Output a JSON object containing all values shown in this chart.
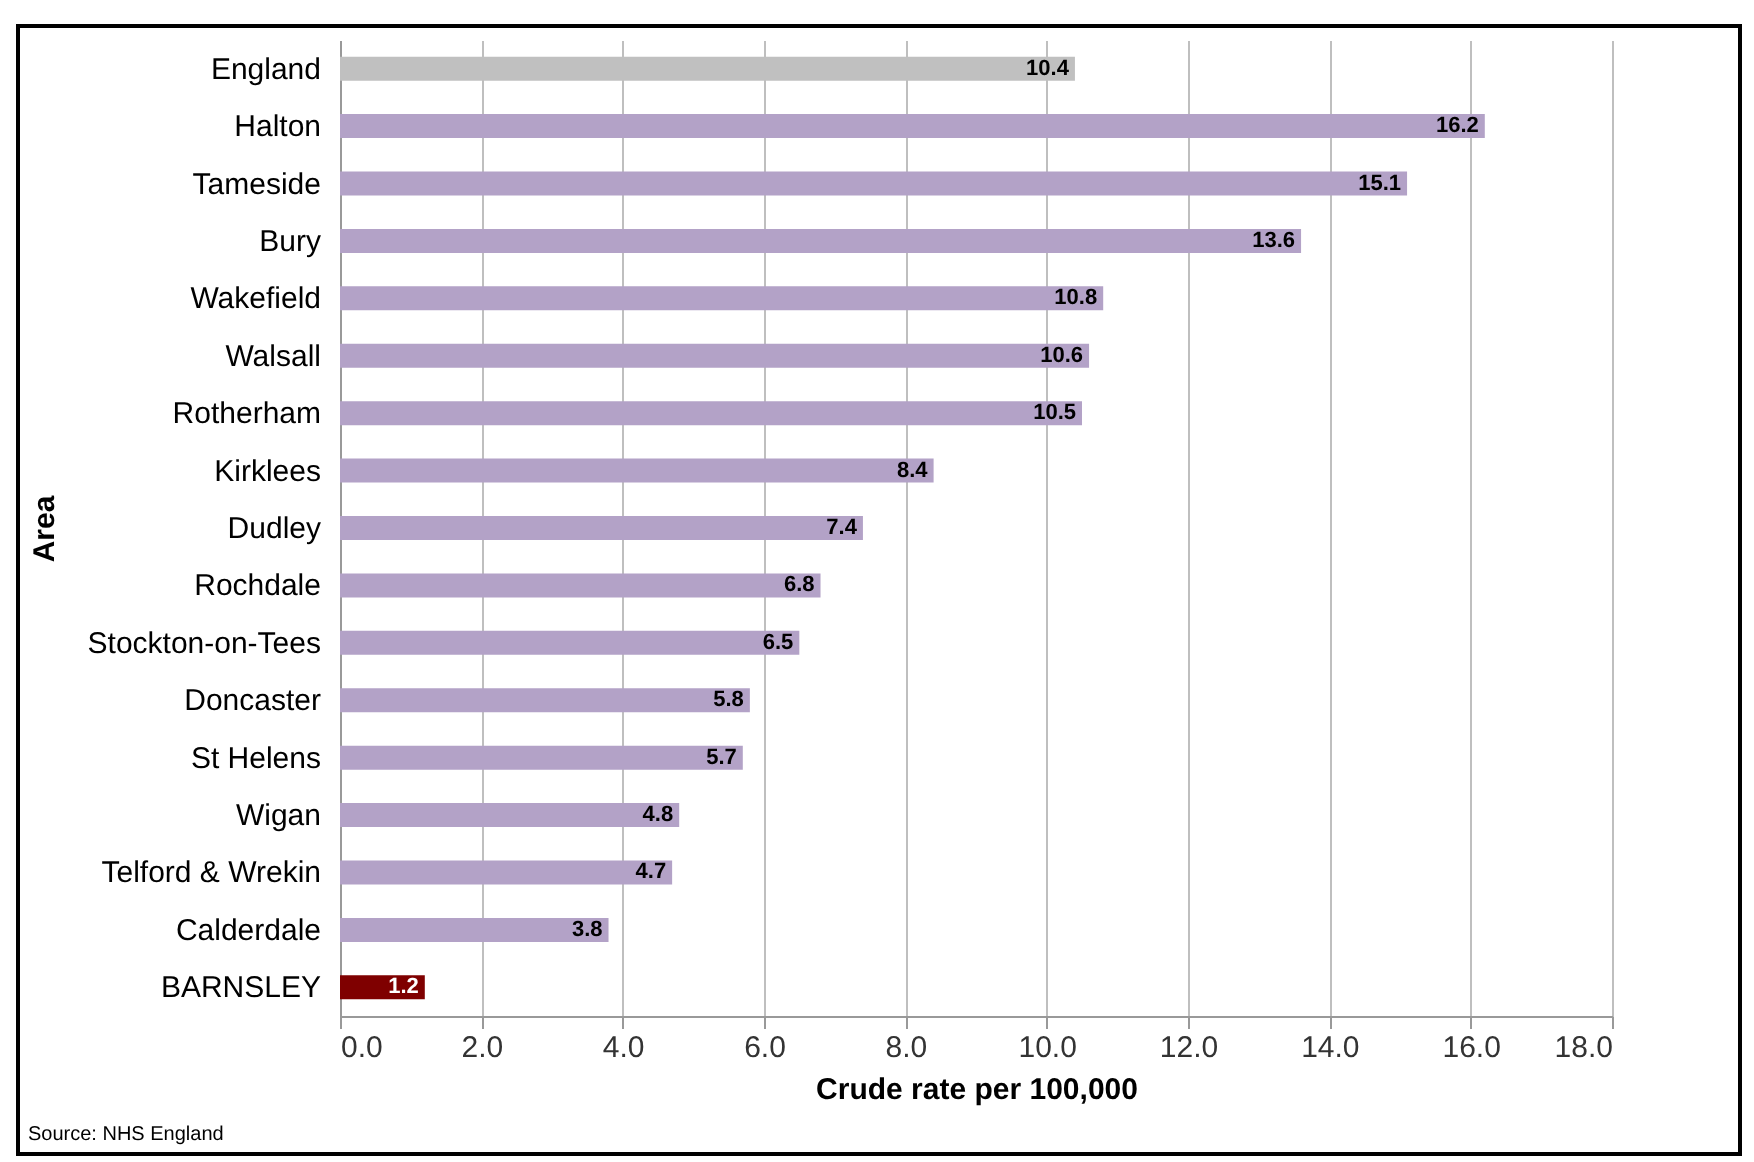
{
  "chart_data": {
    "type": "bar",
    "orientation": "horizontal",
    "xlabel": "Crude rate per 100,000",
    "ylabel": "Area",
    "categories": [
      "England",
      "Halton",
      "Tameside",
      "Bury",
      "Wakefield",
      "Walsall",
      "Rotherham",
      "Kirklees",
      "Dudley",
      "Rochdale",
      "Stockton-on-Tees",
      "Doncaster",
      "St Helens",
      "Wigan",
      "Telford & Wrekin",
      "Calderdale",
      "BARNSLEY"
    ],
    "values": [
      10.4,
      16.2,
      15.1,
      13.6,
      10.8,
      10.6,
      10.5,
      8.4,
      7.4,
      6.8,
      6.5,
      5.8,
      5.7,
      4.8,
      4.7,
      3.8,
      1.2
    ],
    "colors": [
      "#c0c0c0",
      "#b3a2c7",
      "#b3a2c7",
      "#b3a2c7",
      "#b3a2c7",
      "#b3a2c7",
      "#b3a2c7",
      "#b3a2c7",
      "#b3a2c7",
      "#b3a2c7",
      "#b3a2c7",
      "#b3a2c7",
      "#b3a2c7",
      "#b3a2c7",
      "#b3a2c7",
      "#b3a2c7",
      "#7f0000"
    ],
    "xlim": [
      0,
      18
    ],
    "xticks": [
      {
        "value": 0,
        "label": "0.0"
      },
      {
        "value": 2,
        "label": "2.0"
      },
      {
        "value": 4,
        "label": "4.0"
      },
      {
        "value": 6,
        "label": "6.0"
      },
      {
        "value": 8,
        "label": "8.0"
      },
      {
        "value": 10,
        "label": "10.0"
      },
      {
        "value": 12,
        "label": "12.0"
      },
      {
        "value": 14,
        "label": "14.0"
      },
      {
        "value": 16,
        "label": "16.0"
      },
      {
        "value": 18,
        "label": "18.0"
      }
    ],
    "grid": "x",
    "data_labels": true,
    "annotations": [
      "Source: NHS England"
    ]
  }
}
